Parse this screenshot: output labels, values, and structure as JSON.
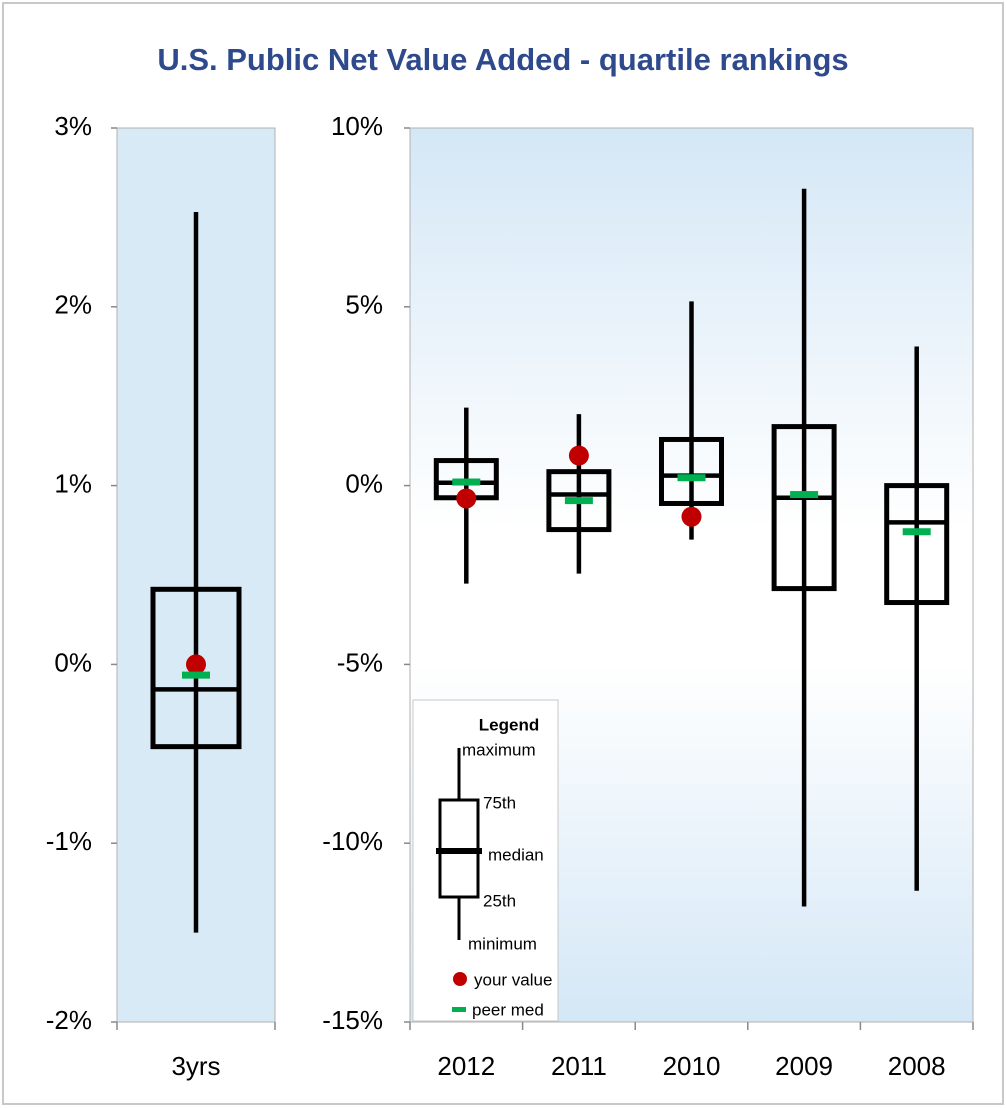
{
  "chart_data": [
    {
      "type": "box",
      "title": "U.S. Public Net Value Added - quartile rankings",
      "categories": [
        "3yrs"
      ],
      "min": [
        -1.5
      ],
      "q1": [
        -0.46
      ],
      "median": [
        -0.14
      ],
      "q3": [
        0.42
      ],
      "max": [
        2.53
      ],
      "series": [
        {
          "name": "your value",
          "color": "#c00000",
          "values": [
            0.0
          ]
        },
        {
          "name": "peer med",
          "color": "#00b050",
          "values": [
            -0.06
          ]
        }
      ],
      "ylim": [
        -2,
        3
      ],
      "yticks": [
        {
          "value": 3,
          "label": "3%"
        },
        {
          "value": 2,
          "label": "2%"
        },
        {
          "value": 1,
          "label": "1%"
        },
        {
          "value": 0,
          "label": "0%"
        },
        {
          "value": -1,
          "label": "-1%"
        },
        {
          "value": -2,
          "label": "-2%"
        }
      ]
    },
    {
      "type": "box",
      "categories": [
        "2012",
        "2011",
        "2010",
        "2009",
        "2008"
      ],
      "min": [
        -2.74,
        -2.46,
        -1.51,
        -11.77,
        -11.33
      ],
      "q1": [
        -0.34,
        -1.23,
        -0.5,
        -2.88,
        -3.27
      ],
      "median": [
        0.08,
        -0.25,
        0.28,
        -0.34,
        -1.03
      ],
      "q3": [
        0.7,
        0.39,
        1.29,
        1.65,
        0.0
      ],
      "max": [
        2.18,
        2.0,
        5.15,
        8.3,
        3.89
      ],
      "series": [
        {
          "name": "your value",
          "color": "#c00000",
          "values": [
            -0.36,
            0.84,
            -0.87,
            null,
            null
          ]
        },
        {
          "name": "peer med",
          "color": "#00b050",
          "values": [
            0.1,
            -0.42,
            0.22,
            -0.25,
            -1.29
          ]
        }
      ],
      "ylim": [
        -15,
        10
      ],
      "yticks": [
        {
          "value": 10,
          "label": "10%"
        },
        {
          "value": 5,
          "label": "5%"
        },
        {
          "value": 0,
          "label": "0%"
        },
        {
          "value": -5,
          "label": "-5%"
        },
        {
          "value": -10,
          "label": "-10%"
        },
        {
          "value": -15,
          "label": "-15%"
        }
      ],
      "legend": {
        "title": "Legend",
        "labels": [
          "maximum",
          "75th",
          "median",
          "25th",
          "minimum"
        ]
      }
    }
  ]
}
